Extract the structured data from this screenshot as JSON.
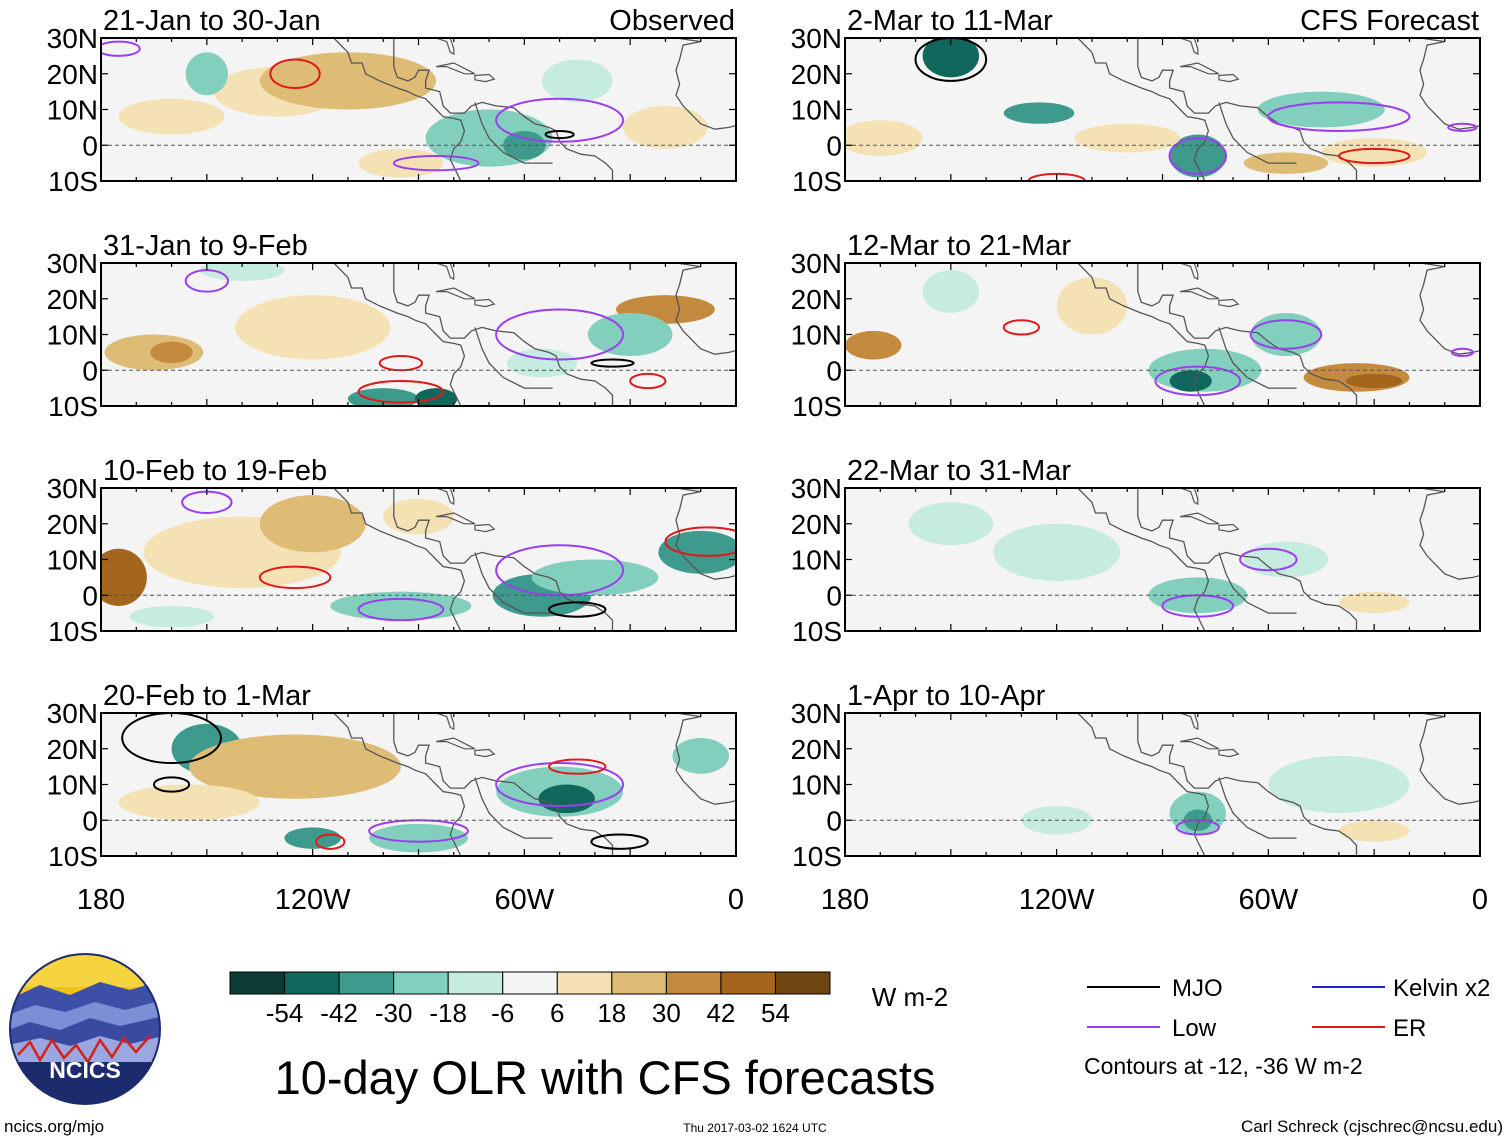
{
  "chart_data": {
    "type": "heatmap",
    "title": "10-day OLR with CFS forecasts",
    "variable": "OLR anomaly",
    "units": "W m-2",
    "observed_label": "Observed",
    "forecast_label": "CFS Forecast",
    "lon_ticks": [
      "180",
      "120W",
      "60W",
      "0"
    ],
    "lon_values": [
      -180,
      -120,
      -60,
      0
    ],
    "lat_ticks": [
      "30N",
      "20N",
      "10N",
      "0",
      "10S"
    ],
    "lat_values": [
      30,
      20,
      10,
      0,
      -10
    ],
    "lon_range": [
      -180,
      0
    ],
    "lat_range": [
      -10,
      30
    ],
    "panels": [
      {
        "period": "21-Jan to 30-Jan",
        "kind": "observed"
      },
      {
        "period": "31-Jan to 9-Feb",
        "kind": "observed"
      },
      {
        "period": "10-Feb to 19-Feb",
        "kind": "observed"
      },
      {
        "period": "20-Feb to 1-Mar",
        "kind": "observed"
      },
      {
        "period": "2-Mar to 11-Mar",
        "kind": "forecast"
      },
      {
        "period": "12-Mar to 21-Mar",
        "kind": "forecast"
      },
      {
        "period": "22-Mar to 31-Mar",
        "kind": "forecast"
      },
      {
        "period": "1-Apr to 10-Apr",
        "kind": "forecast"
      }
    ],
    "colorbar": {
      "labels": [
        "-54",
        "-42",
        "-30",
        "-18",
        "-6",
        "6",
        "18",
        "30",
        "42",
        "54"
      ],
      "colors": [
        "#0b3b33",
        "#10685c",
        "#3e9a8c",
        "#83cfbd",
        "#c6ebe1",
        "#f4f4f4",
        "#f4e2b4",
        "#dfbc76",
        "#c48a3e",
        "#a4651d",
        "#6f4410"
      ],
      "units": "W m-2"
    },
    "legend": [
      {
        "name": "MJO",
        "color": "#000000"
      },
      {
        "name": "Kelvin x2",
        "color": "#1f22c8"
      },
      {
        "name": "Low",
        "color": "#9a3ff0"
      },
      {
        "name": "ER",
        "color": "#e0191b"
      }
    ],
    "contour_note": "Contours at -12, -36 W m-2"
  },
  "footer": {
    "logo_text": "NCICS",
    "url": "ncics.org/mjo",
    "timestamp": "Thu 2017-03-02 1624 UTC",
    "credit": "Carl Schreck (cjschrec@ncsu.edu)"
  }
}
